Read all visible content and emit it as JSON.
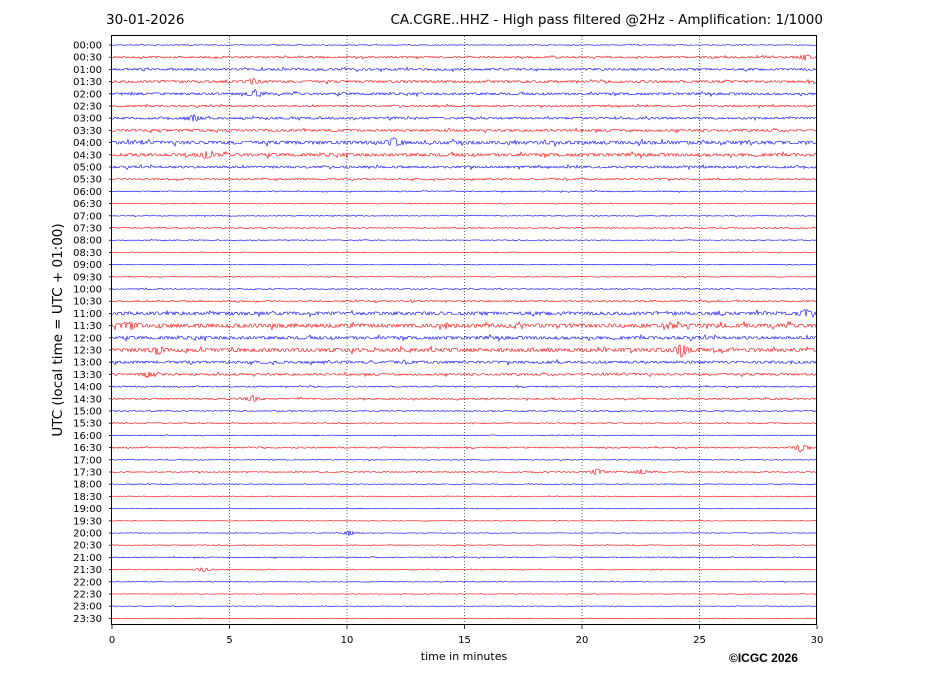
{
  "header": {
    "date": "30-01-2026",
    "title": "CA.CGRE..HHZ - High pass filtered @2Hz - Amplification: 1/1000"
  },
  "footer": {
    "copyright": "©ICGC 2026"
  },
  "chart_data": {
    "type": "line",
    "xlabel": "time in minutes",
    "ylabel": "UTC (local time = UTC + 01:00)",
    "xlim": [
      0,
      30
    ],
    "xticks": [
      0,
      5,
      10,
      15,
      20,
      25,
      30
    ],
    "vertical_gridlines": [
      5,
      10,
      15,
      20,
      25
    ],
    "grid": "vertical dotted",
    "colors": {
      "even_rows": "#0000ff",
      "odd_rows": "#ff0000"
    },
    "row_order": "alternating blue/red starting with blue at 00:00",
    "rows": [
      "00:00",
      "00:30",
      "01:00",
      "01:30",
      "02:00",
      "02:30",
      "03:00",
      "03:30",
      "04:00",
      "04:30",
      "05:00",
      "05:30",
      "06:00",
      "06:30",
      "07:00",
      "07:30",
      "08:00",
      "08:30",
      "09:00",
      "09:30",
      "10:00",
      "10:30",
      "11:00",
      "11:30",
      "12:00",
      "12:30",
      "13:00",
      "13:30",
      "14:00",
      "14:30",
      "15:00",
      "15:30",
      "16:00",
      "16:30",
      "17:00",
      "17:30",
      "18:00",
      "18:30",
      "19:00",
      "19:30",
      "20:00",
      "20:30",
      "21:00",
      "21:30",
      "22:00",
      "22:30",
      "23:00",
      "23:30"
    ],
    "noise_level": [
      0.3,
      0.7,
      0.8,
      0.9,
      0.9,
      0.7,
      0.8,
      0.9,
      1.3,
      1.2,
      0.9,
      0.6,
      0.4,
      0.3,
      0.3,
      0.4,
      0.3,
      0.3,
      0.3,
      0.3,
      0.4,
      0.6,
      1.3,
      1.5,
      1.2,
      1.4,
      1.0,
      0.8,
      0.5,
      0.6,
      0.4,
      0.4,
      0.3,
      0.5,
      0.3,
      0.4,
      0.3,
      0.3,
      0.2,
      0.2,
      0.2,
      0.3,
      0.4,
      0.3,
      0.2,
      0.2,
      0.2,
      0.2
    ],
    "events": [
      {
        "row": "00:30",
        "minute": 29.5,
        "amplitude": 2.5
      },
      {
        "row": "01:30",
        "minute": 6.0,
        "amplitude": 3
      },
      {
        "row": "02:00",
        "minute": 6.1,
        "amplitude": 3
      },
      {
        "row": "03:00",
        "minute": 3.5,
        "amplitude": 3
      },
      {
        "row": "04:00",
        "minute": 12.0,
        "amplitude": 4
      },
      {
        "row": "04:30",
        "minute": 4.0,
        "amplitude": 3.5
      },
      {
        "row": "11:00",
        "minute": 29.5,
        "amplitude": 3.5
      },
      {
        "row": "11:30",
        "minute": 0.8,
        "amplitude": 3.5
      },
      {
        "row": "12:30",
        "minute": 24.2,
        "amplitude": 7
      },
      {
        "row": "12:30",
        "minute": 2.0,
        "amplitude": 3
      },
      {
        "row": "13:30",
        "minute": 1.5,
        "amplitude": 2.5
      },
      {
        "row": "14:30",
        "minute": 6.0,
        "amplitude": 3
      },
      {
        "row": "16:30",
        "minute": 29.3,
        "amplitude": 4
      },
      {
        "row": "17:30",
        "minute": 20.6,
        "amplitude": 3
      },
      {
        "row": "17:30",
        "minute": 22.5,
        "amplitude": 2.5
      },
      {
        "row": "20:00",
        "minute": 10.1,
        "amplitude": 3
      },
      {
        "row": "21:30",
        "minute": 3.9,
        "amplitude": 2.5
      }
    ]
  }
}
